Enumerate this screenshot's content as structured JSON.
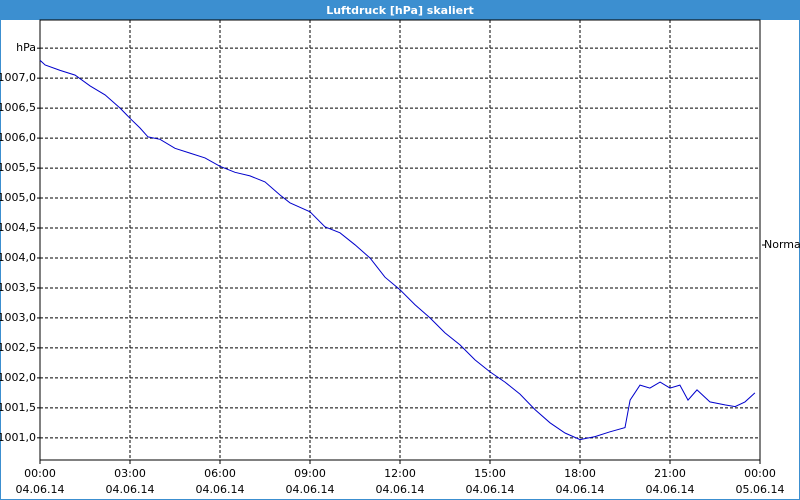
{
  "chart_data": {
    "type": "line",
    "title": "Luftdruck [hPa] skaliert",
    "x": [
      0,
      0.17,
      0.67,
      1.17,
      1.67,
      2.17,
      2.67,
      3,
      3.33,
      3.6,
      4,
      4.5,
      5,
      5.5,
      6,
      6.5,
      7,
      7.5,
      8,
      8.33,
      9,
      9.5,
      10,
      10.5,
      11,
      11.5,
      12,
      12.5,
      13,
      13.5,
      14,
      14.5,
      15,
      15.5,
      16,
      16.5,
      17,
      17.5,
      18,
      18.5,
      19,
      19.5,
      19.67,
      20,
      20.33,
      20.67,
      21,
      21.33,
      21.6,
      21.9,
      22.33,
      22.83,
      23.17,
      23.5,
      23.83
    ],
    "series": [
      {
        "name": "Normal",
        "color": "#0000cc",
        "values": [
          1007.3,
          1007.22,
          1007.13,
          1007.05,
          1006.87,
          1006.72,
          1006.5,
          1006.33,
          1006.17,
          1006.02,
          1005.98,
          1005.83,
          1005.75,
          1005.67,
          1005.53,
          1005.43,
          1005.37,
          1005.27,
          1005.05,
          1004.92,
          1004.77,
          1004.52,
          1004.42,
          1004.22,
          1004.0,
          1003.68,
          1003.47,
          1003.22,
          1003.0,
          1002.75,
          1002.55,
          1002.3,
          1002.1,
          1001.93,
          1001.73,
          1001.47,
          1001.25,
          1001.08,
          1000.97,
          1001.02,
          1001.1,
          1001.17,
          1001.63,
          1001.88,
          1001.83,
          1001.93,
          1001.83,
          1001.88,
          1001.63,
          1001.8,
          1001.6,
          1001.55,
          1001.52,
          1001.6,
          1001.75
        ]
      }
    ],
    "xlim": [
      0,
      24
    ],
    "xticks": [
      {
        "value": 0,
        "label": "00:00"
      },
      {
        "value": 3,
        "label": "03:00"
      },
      {
        "value": 6,
        "label": "06:00"
      },
      {
        "value": 9,
        "label": "09:00"
      },
      {
        "value": 12,
        "label": "12:00"
      },
      {
        "value": 15,
        "label": "15:00"
      },
      {
        "value": 18,
        "label": "18:00"
      },
      {
        "value": 21,
        "label": "21:00"
      },
      {
        "value": 24,
        "label": "00:00"
      }
    ],
    "xtick_dates": [
      "04.06.14",
      "04.06.14",
      "04.06.14",
      "04.06.14",
      "04.06.14",
      "04.06.14",
      "04.06.14",
      "04.06.14",
      "05.06.14"
    ],
    "ylim": [
      1000.63,
      1007.97
    ],
    "yticks": [
      {
        "value": 1001,
        "label": "1001,0"
      },
      {
        "value": 1001.5,
        "label": "1001,5"
      },
      {
        "value": 1002,
        "label": "1002,0"
      },
      {
        "value": 1002.5,
        "label": "1002,5"
      },
      {
        "value": 1003,
        "label": "1003,0"
      },
      {
        "value": 1003.5,
        "label": "1003,5"
      },
      {
        "value": 1004,
        "label": "1004,0"
      },
      {
        "value": 1004.5,
        "label": "1004,5"
      },
      {
        "value": 1005,
        "label": "1005,0"
      },
      {
        "value": 1005.5,
        "label": "1005,5"
      },
      {
        "value": 1006,
        "label": "1006,0"
      },
      {
        "value": 1006.5,
        "label": "1006,5"
      },
      {
        "value": 1007,
        "label": "1007,0"
      },
      {
        "value": 1007.5,
        "label": "hPa"
      }
    ],
    "grid": true,
    "legend": "right"
  }
}
